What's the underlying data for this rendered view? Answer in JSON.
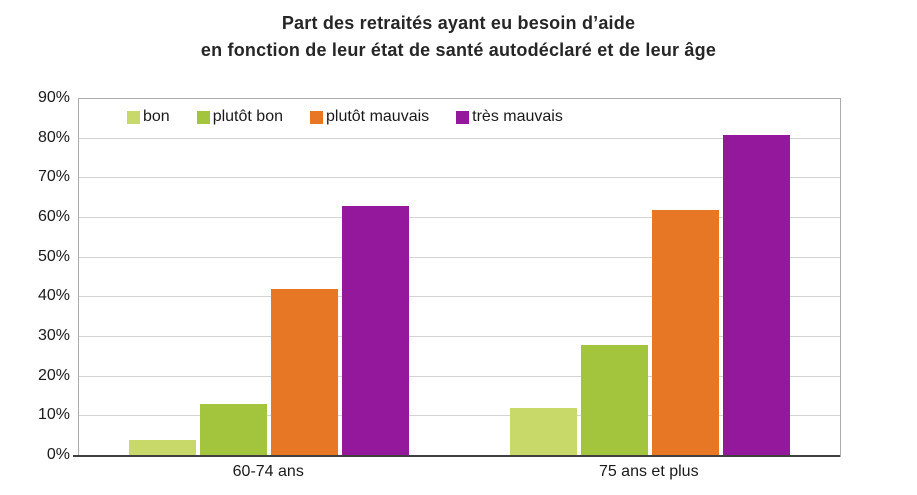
{
  "title": {
    "line1": "Part des retraités ayant eu besoin d’aide",
    "line2": "en fonction de leur état de santé autodéclaré et de leur âge"
  },
  "chart_data": {
    "type": "bar",
    "title": "Part des retraités ayant eu besoin d’aide en fonction de leur état de santé autodéclaré et de leur âge",
    "categories": [
      "60-74 ans",
      "75 ans et plus"
    ],
    "series": [
      {
        "name": "bon",
        "color": "#c8d96a",
        "values": [
          4,
          12
        ]
      },
      {
        "name": "plutôt bon",
        "color": "#a2c53d",
        "values": [
          13,
          28
        ]
      },
      {
        "name": "plutôt mauvais",
        "color": "#e87725",
        "values": [
          42,
          62
        ]
      },
      {
        "name": "très mauvais",
        "color": "#93189b",
        "values": [
          63,
          81
        ]
      }
    ],
    "xlabel": "",
    "ylabel": "",
    "ylim": [
      0,
      90
    ],
    "ytick_step": 10,
    "ytick_suffix": "%",
    "grid": true,
    "legend_position": "top-inside"
  },
  "colors": {
    "grid": "#d4d4d4",
    "plot_border": "#ababab",
    "axis_line": "#404040",
    "text": "#1a1a1a",
    "title_text": "#262626"
  }
}
